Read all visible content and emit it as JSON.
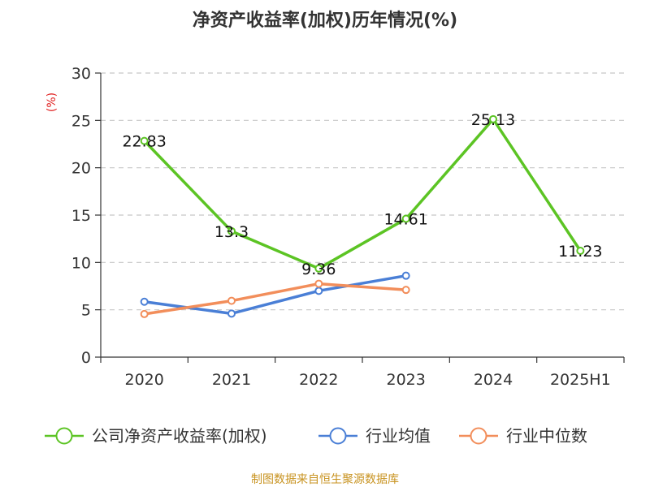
{
  "chart_data": {
    "type": "line",
    "title": "净资产收益率(加权)历年情况(%)",
    "ylabel": "(%)",
    "xlabel": "",
    "categories": [
      "2020",
      "2021",
      "2022",
      "2023",
      "2024",
      "2025H1"
    ],
    "ylim": [
      0,
      30
    ],
    "yticks": [
      0,
      5,
      10,
      15,
      20,
      25,
      30
    ],
    "grid": true,
    "legend_position": "bottom",
    "series": [
      {
        "name": "公司净资产收益率(加权)",
        "color": "#5cc424",
        "values": [
          22.83,
          13.3,
          9.36,
          14.61,
          25.13,
          11.23
        ],
        "labels": [
          "22.83",
          "13.3",
          "9.36",
          "14.61",
          "25.13",
          "11.23"
        ]
      },
      {
        "name": "行业均值",
        "color": "#4a7fd6",
        "values": [
          5.85,
          4.6,
          7.0,
          8.6,
          null,
          null
        ]
      },
      {
        "name": "行业中位数",
        "color": "#f28e5b",
        "values": [
          4.55,
          5.95,
          7.75,
          7.1,
          null,
          null
        ]
      }
    ]
  },
  "source_note": "制图数据来自恒生聚源数据库",
  "colors": {
    "unit_label": "#e02020",
    "source_note": "#c89320",
    "axis": "#333333",
    "grid": "#c8c8c8"
  }
}
